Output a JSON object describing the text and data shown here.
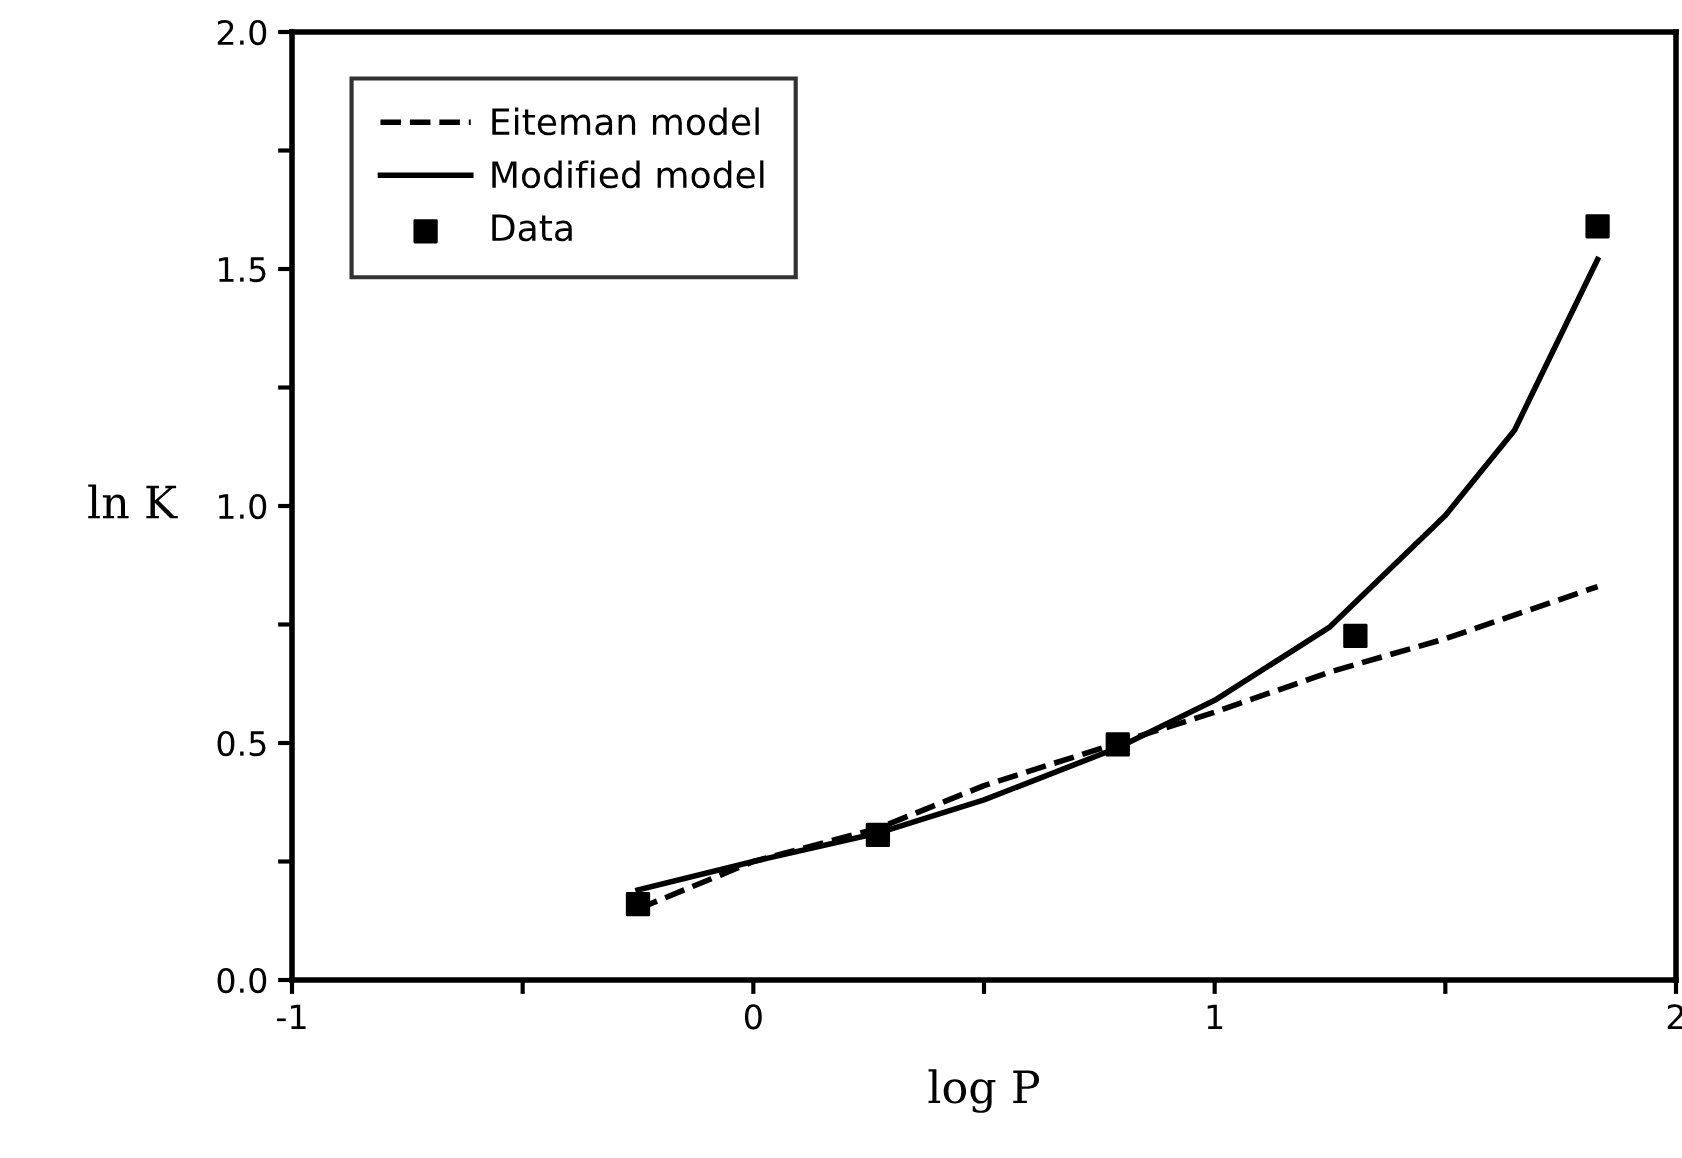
{
  "chart_data": {
    "type": "line",
    "xlabel": "log P",
    "ylabel": "ln K",
    "xlim": [
      -1,
      2
    ],
    "ylim": [
      0,
      2
    ],
    "xticks": [
      -1,
      {
        "value": -0.5,
        "label": null
      },
      0,
      {
        "value": 0.5,
        "label": null
      },
      1,
      {
        "value": 1.5,
        "label": null
      },
      2
    ],
    "yticks": [
      {
        "value": 0.0,
        "label": "0.0"
      },
      {
        "value": 0.25,
        "label": null
      },
      {
        "value": 0.5,
        "label": "0.5"
      },
      {
        "value": 0.75,
        "label": null
      },
      {
        "value": 1.0,
        "label": "1.0"
      },
      {
        "value": 1.25,
        "label": null
      },
      {
        "value": 1.5,
        "label": "1.5"
      },
      {
        "value": 1.75,
        "label": null
      },
      {
        "value": 2.0,
        "label": "2.0"
      }
    ],
    "grid": false,
    "legend": "top left",
    "series": [
      {
        "name": "Eiteman model",
        "line_style": "dashed",
        "marker": "none",
        "color": "#000000",
        "x": [
          -0.25,
          0,
          0.27,
          0.5,
          0.79,
          1.0,
          1.25,
          1.5,
          1.83
        ],
        "values": [
          0.15,
          0.25,
          0.32,
          0.41,
          0.5,
          0.565,
          0.65,
          0.72,
          0.83
        ]
      },
      {
        "name": "Modified model",
        "line_style": "solid",
        "marker": "none",
        "color": "#000000",
        "x": [
          -0.25,
          0,
          0.27,
          0.5,
          0.79,
          1.0,
          1.25,
          1.5,
          1.65,
          1.83
        ],
        "values": [
          0.19,
          0.25,
          0.31,
          0.38,
          0.49,
          0.59,
          0.745,
          0.98,
          1.16,
          1.52
        ]
      },
      {
        "name": "Data",
        "type": "scatter",
        "marker": "square",
        "color": "#000000",
        "x": [
          -0.25,
          0.27,
          0.79,
          1.305,
          1.83
        ],
        "values": [
          0.16,
          0.306,
          0.497,
          0.726,
          1.59
        ]
      }
    ]
  }
}
